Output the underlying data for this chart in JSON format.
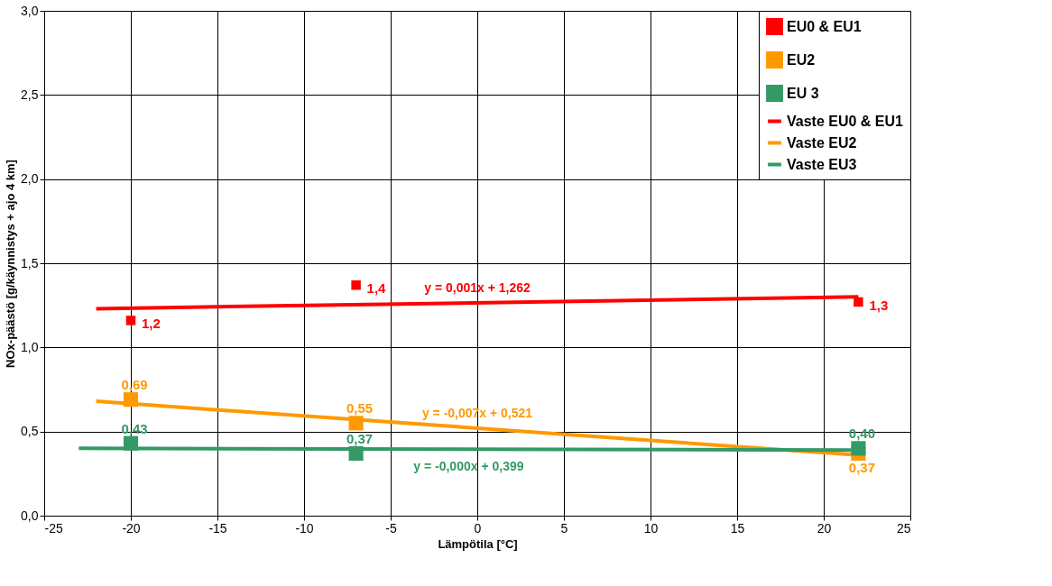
{
  "chart_data": {
    "type": "scatter",
    "xlabel": "Lämpötila [°C]",
    "ylabel": "NOx-päästö [g/käynnistys + ajo 4 km]",
    "xlim": [
      -25,
      25
    ],
    "xticks": [
      -25,
      -20,
      -15,
      -10,
      -5,
      0,
      5,
      10,
      15,
      20,
      25
    ],
    "ylim": [
      0,
      3
    ],
    "yticks": [
      {
        "value": 0,
        "label": "0,0"
      },
      {
        "value": 0.5,
        "label": "0,5"
      },
      {
        "value": 1,
        "label": "1,0"
      },
      {
        "value": 1.5,
        "label": "1,5"
      },
      {
        "value": 2,
        "label": "2,0"
      },
      {
        "value": 2.5,
        "label": "2,5"
      },
      {
        "value": 3,
        "label": "3,0"
      }
    ],
    "grid": true,
    "legend": "top right",
    "series": [
      {
        "name": "EU0 & EU1",
        "marker": "square",
        "color": "#ff0000",
        "x": [
          -20,
          -7,
          22
        ],
        "values": [
          1.16,
          1.37,
          1.27
        ],
        "value_labels": [
          "1,2",
          "1,4",
          "1,3"
        ]
      },
      {
        "name": "EU2",
        "marker": "square",
        "color": "#ff9900",
        "x": [
          -20,
          -7,
          22
        ],
        "values": [
          0.69,
          0.55,
          0.37
        ],
        "value_labels": [
          "0,69",
          "0,55",
          "0,37"
        ]
      },
      {
        "name": "EU 3",
        "marker": "square",
        "color": "#339966",
        "x": [
          -20,
          -7,
          22
        ],
        "values": [
          0.43,
          0.37,
          0.4
        ],
        "value_labels": [
          "0,43",
          "0,37",
          "0,40"
        ]
      },
      {
        "name": "Vaste EU0 & EU1",
        "type": "line",
        "color": "#ff0000",
        "x": [
          -22,
          22
        ],
        "values": [
          1.23,
          1.3
        ]
      },
      {
        "name": "Vaste EU2",
        "type": "line",
        "color": "#ff9900",
        "x": [
          -22,
          22
        ],
        "values": [
          0.68,
          0.36
        ]
      },
      {
        "name": "Vaste EU3",
        "type": "line",
        "color": "#339966",
        "x": [
          -23,
          22
        ],
        "values": [
          0.4,
          0.39
        ]
      }
    ],
    "annotations": [
      "y = 0,001x + 1,262",
      "y = -0,007x + 0,521",
      "y = -0,000x + 0,399"
    ]
  }
}
